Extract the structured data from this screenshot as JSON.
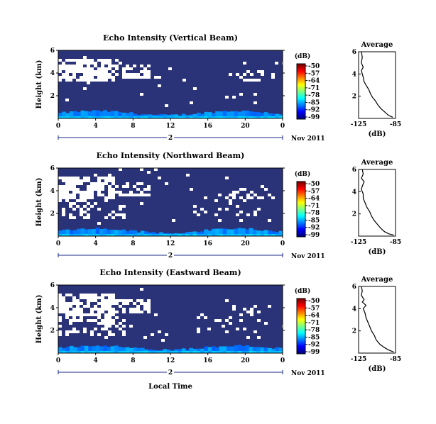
{
  "chart_data": [
    {
      "type": "heatmap",
      "title": "Echo Intensity (Vertical Beam)",
      "ylabel": "Height (km)",
      "x_ticks": [
        "0",
        "4",
        "8",
        "12",
        "16",
        "20",
        "0"
      ],
      "y_ticks": [
        "6",
        "4",
        "2"
      ],
      "date_axis": {
        "day": "2",
        "date": "Nov 2011"
      },
      "colorbar": {
        "unit": "(dB)",
        "ticks": [
          "-50",
          "-57",
          "-64",
          "-71",
          "-78",
          "-85",
          "-92",
          "-99"
        ],
        "range": [
          -99,
          -50
        ]
      },
      "profile": {
        "title": "Average",
        "xlabel": "(dB)",
        "x_ticks": [
          "-125",
          "-85"
        ],
        "y_ticks": [
          "6",
          "4",
          "2"
        ],
        "xlim": [
          -125,
          -85
        ],
        "ylim": [
          0,
          6
        ],
        "points": [
          [
            -122,
            6.0
          ],
          [
            -121,
            5.5
          ],
          [
            -122,
            5.0
          ],
          [
            -120,
            4.6
          ],
          [
            -122,
            4.3
          ],
          [
            -121,
            4.0
          ],
          [
            -120,
            3.7
          ],
          [
            -119,
            3.3
          ],
          [
            -117,
            3.0
          ],
          [
            -114,
            2.6
          ],
          [
            -112,
            2.2
          ],
          [
            -110,
            1.9
          ],
          [
            -107,
            1.6
          ],
          [
            -104,
            1.2
          ],
          [
            -101,
            0.9
          ],
          [
            -97,
            0.6
          ],
          [
            -93,
            0.3
          ],
          [
            -88,
            0.1
          ]
        ]
      }
    },
    {
      "type": "heatmap",
      "title": "Echo Intensity (Northward Beam)",
      "ylabel": "Height (km)",
      "x_ticks": [
        "0",
        "4",
        "8",
        "12",
        "16",
        "20",
        "0"
      ],
      "y_ticks": [
        "6",
        "4",
        "2"
      ],
      "date_axis": {
        "day": "2",
        "date": "Nov 2011"
      },
      "colorbar": {
        "unit": "(dB)",
        "ticks": [
          "-50",
          "-57",
          "-64",
          "-71",
          "-78",
          "-85",
          "-92",
          "-99"
        ],
        "range": [
          -99,
          -50
        ]
      },
      "profile": {
        "title": "Average",
        "xlabel": "(dB)",
        "x_ticks": [
          "-125",
          "-85"
        ],
        "y_ticks": [
          "6",
          "4",
          "2"
        ],
        "xlim": [
          -125,
          -85
        ],
        "ylim": [
          0,
          6
        ],
        "points": [
          [
            -121,
            6.0
          ],
          [
            -120,
            5.6
          ],
          [
            -122,
            5.2
          ],
          [
            -119,
            4.9
          ],
          [
            -121,
            4.5
          ],
          [
            -122,
            4.2
          ],
          [
            -120,
            3.8
          ],
          [
            -120,
            3.4
          ],
          [
            -118,
            3.0
          ],
          [
            -116,
            2.6
          ],
          [
            -113,
            2.2
          ],
          [
            -111,
            1.8
          ],
          [
            -108,
            1.4
          ],
          [
            -105,
            1.1
          ],
          [
            -101,
            0.7
          ],
          [
            -97,
            0.4
          ],
          [
            -92,
            0.2
          ],
          [
            -87,
            0.1
          ]
        ]
      }
    },
    {
      "type": "heatmap",
      "title": "Echo Intensity (Eastward Beam)",
      "ylabel": "Height (km)",
      "x_ticks": [
        "0",
        "4",
        "8",
        "12",
        "16",
        "20",
        "0"
      ],
      "y_ticks": [
        "6",
        "4",
        "2"
      ],
      "date_axis": {
        "day": "2",
        "date": "Nov 2011"
      },
      "colorbar": {
        "unit": "(dB)",
        "ticks": [
          "-50",
          "-57",
          "-64",
          "-71",
          "-78",
          "-85",
          "-92",
          "-99"
        ],
        "range": [
          -99,
          -50
        ]
      },
      "profile": {
        "title": "Average",
        "xlabel": "(dB)",
        "x_ticks": [
          "-125",
          "-85"
        ],
        "y_ticks": [
          "6",
          "4",
          "2"
        ],
        "xlim": [
          -125,
          -85
        ],
        "ylim": [
          0,
          6
        ],
        "points": [
          [
            -122,
            6.0
          ],
          [
            -121,
            5.6
          ],
          [
            -122,
            5.2
          ],
          [
            -119,
            4.8
          ],
          [
            -121,
            4.6
          ],
          [
            -117,
            4.3
          ],
          [
            -120,
            4.0
          ],
          [
            -118,
            3.6
          ],
          [
            -117,
            3.2
          ],
          [
            -115,
            2.8
          ],
          [
            -113,
            2.4
          ],
          [
            -111,
            2.0
          ],
          [
            -108,
            1.6
          ],
          [
            -106,
            1.2
          ],
          [
            -102,
            0.8
          ],
          [
            -97,
            0.5
          ],
          [
            -93,
            0.3
          ],
          [
            -87,
            0.1
          ]
        ]
      }
    }
  ],
  "xlabel": "Local Time"
}
